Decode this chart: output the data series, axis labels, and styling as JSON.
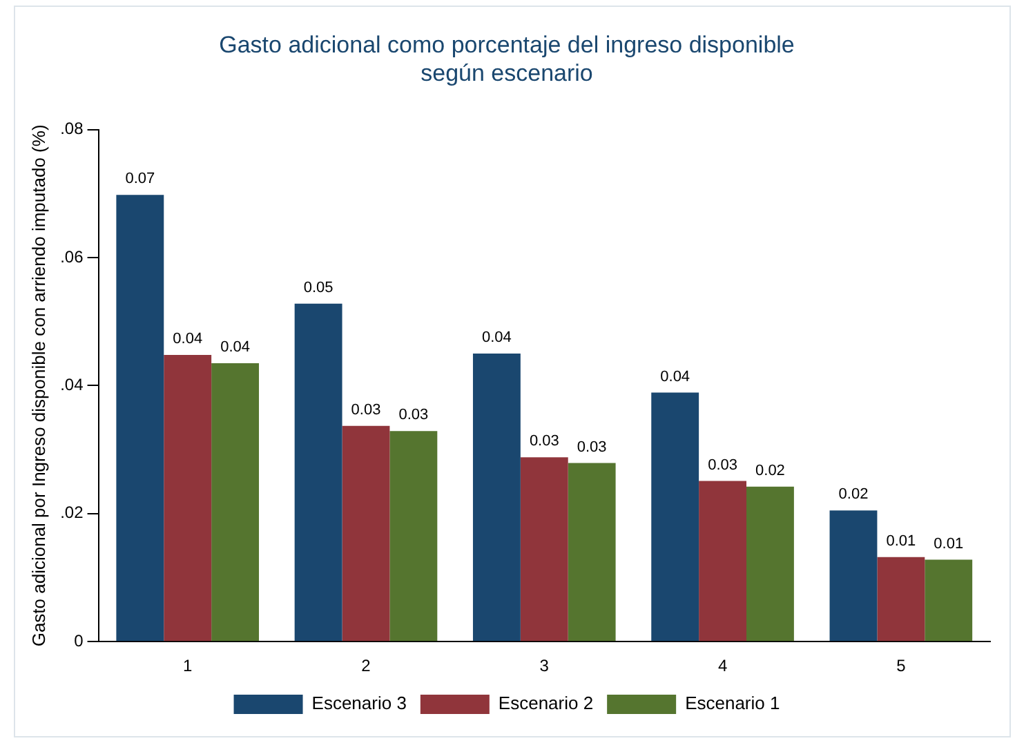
{
  "chart_data": {
    "type": "bar",
    "title": [
      "Gasto adicional como porcentaje del ingreso disponible",
      "según escenario"
    ],
    "ylabel": "Gasto adicional por Ingreso disponible con arriendo imputado (%)",
    "categories": [
      "1",
      "2",
      "3",
      "4",
      "5"
    ],
    "series": [
      {
        "name": "Escenario 3",
        "color": "#1a476f",
        "values": [
          0.0698,
          0.0528,
          0.045,
          0.0389,
          0.0205
        ],
        "value_labels": [
          "0.07",
          "0.05",
          "0.04",
          "0.04",
          "0.02"
        ]
      },
      {
        "name": "Escenario 2",
        "color": "#90353b",
        "values": [
          0.0448,
          0.0337,
          0.0288,
          0.0251,
          0.0132
        ],
        "value_labels": [
          "0.04",
          "0.03",
          "0.03",
          "0.03",
          "0.01"
        ]
      },
      {
        "name": "Escenario 1",
        "color": "#55752f",
        "values": [
          0.0435,
          0.0329,
          0.0279,
          0.0242,
          0.0128
        ],
        "value_labels": [
          "0.04",
          "0.03",
          "0.03",
          "0.02",
          "0.01"
        ]
      }
    ],
    "ylim": [
      0,
      0.08
    ],
    "yticks": [
      0,
      {
        "value": 0.02,
        "label": ".02"
      },
      {
        "value": 0.04,
        "label": ".04"
      },
      {
        "value": 0.06,
        "label": ".06"
      },
      {
        "value": 0.08,
        "label": ".08"
      }
    ],
    "grid": false,
    "legend": "bottom"
  }
}
